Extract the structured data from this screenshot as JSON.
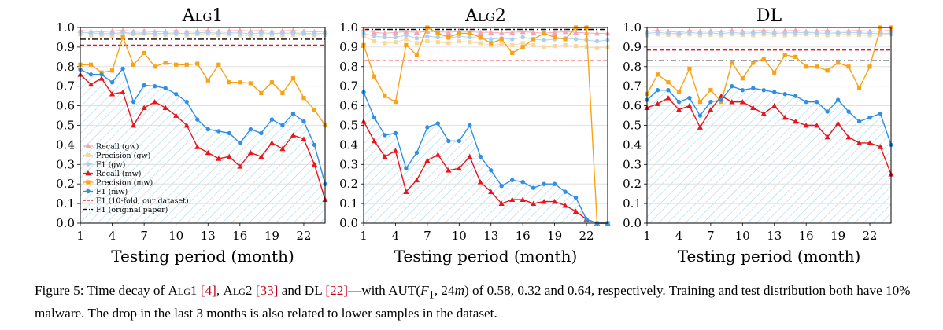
{
  "chart_data": [
    {
      "type": "line",
      "title": "Alg1",
      "xlabel": "Testing period (month)",
      "ylabel": "",
      "xlim": [
        1,
        24
      ],
      "ylim": [
        0,
        1
      ],
      "xticks": [
        "1",
        "4",
        "7",
        "10",
        "13",
        "16",
        "19",
        "22"
      ],
      "yticks": [
        "0.0",
        "0.1",
        "0.2",
        "0.3",
        "0.4",
        "0.5",
        "0.6",
        "0.7",
        "0.8",
        "0.9",
        "1.0"
      ],
      "grid": true,
      "legend_position": "lower-left",
      "series": [
        {
          "name": "Recall (gw)",
          "color": "#f4a6b0",
          "marker": "triangle",
          "faded": true,
          "values": [
            0.985,
            0.98,
            0.978,
            0.982,
            0.985,
            0.98,
            0.982,
            0.978,
            0.98,
            0.984,
            0.98,
            0.982,
            0.985,
            0.98,
            0.983,
            0.985,
            0.982,
            0.985,
            0.98,
            0.983,
            0.985,
            0.98,
            0.978,
            0.98
          ]
        },
        {
          "name": "Precision (gw)",
          "color": "#f9d79a",
          "marker": "square",
          "faded": true,
          "values": [
            0.965,
            0.96,
            0.962,
            0.958,
            0.97,
            0.965,
            0.968,
            0.96,
            0.962,
            0.965,
            0.96,
            0.966,
            0.968,
            0.962,
            0.965,
            0.96,
            0.958,
            0.962,
            0.964,
            0.96,
            0.963,
            0.965,
            0.96,
            0.962
          ]
        },
        {
          "name": "F1 (gw)",
          "color": "#a9cff2",
          "marker": "circle",
          "faded": true,
          "values": [
            0.975,
            0.972,
            0.97,
            0.968,
            0.975,
            0.97,
            0.973,
            0.968,
            0.97,
            0.972,
            0.968,
            0.973,
            0.975,
            0.97,
            0.973,
            0.972,
            0.968,
            0.972,
            0.97,
            0.97,
            0.972,
            0.97,
            0.968,
            0.97
          ]
        },
        {
          "name": "Recall (mw)",
          "color": "#e8151b",
          "marker": "triangle",
          "values": [
            0.76,
            0.71,
            0.74,
            0.66,
            0.67,
            0.5,
            0.59,
            0.62,
            0.59,
            0.55,
            0.5,
            0.39,
            0.36,
            0.33,
            0.34,
            0.29,
            0.36,
            0.34,
            0.41,
            0.38,
            0.45,
            0.43,
            0.3,
            0.12
          ]
        },
        {
          "name": "Precision (mw)",
          "color": "#f8a315",
          "marker": "square",
          "values": [
            0.81,
            0.81,
            0.77,
            0.78,
            0.95,
            0.81,
            0.87,
            0.8,
            0.82,
            0.81,
            0.81,
            0.815,
            0.73,
            0.81,
            0.72,
            0.72,
            0.715,
            0.665,
            0.72,
            0.665,
            0.74,
            0.64,
            0.58,
            0.5
          ]
        },
        {
          "name": "F1 (mw)",
          "color": "#2f8fe4",
          "marker": "circle",
          "values": [
            0.785,
            0.76,
            0.76,
            0.72,
            0.79,
            0.62,
            0.705,
            0.7,
            0.69,
            0.66,
            0.62,
            0.53,
            0.48,
            0.47,
            0.46,
            0.41,
            0.48,
            0.46,
            0.53,
            0.5,
            0.56,
            0.52,
            0.4,
            0.2
          ]
        }
      ],
      "reference_lines": [
        {
          "name": "F1 (10-fold, our dataset)",
          "color": "#e8151b",
          "style": "dashed",
          "value": 0.91
        },
        {
          "name": "F1 (original paper)",
          "color": "#000000",
          "style": "dash-dot",
          "value": 0.94
        }
      ],
      "legend": [
        "Recall (gw)",
        "Precision (gw)",
        "F1 (gw)",
        "Recall (mw)",
        "Precision (mw)",
        "F1 (mw)",
        "F1 (10-fold, our dataset)",
        "F1 (original paper)"
      ]
    },
    {
      "type": "line",
      "title": "Alg2",
      "xlabel": "Testing period (month)",
      "ylabel": "",
      "xlim": [
        1,
        24
      ],
      "ylim": [
        0,
        1
      ],
      "xticks": [
        "1",
        "4",
        "7",
        "10",
        "13",
        "16",
        "19",
        "22"
      ],
      "yticks": [
        "0.0",
        "0.1",
        "0.2",
        "0.3",
        "0.4",
        "0.5",
        "0.6",
        "0.7",
        "0.8",
        "0.9",
        "1.0"
      ],
      "grid": true,
      "series": [
        {
          "name": "Recall (gw)",
          "color": "#f4a6b0",
          "marker": "triangle",
          "faded": true,
          "values": [
            0.99,
            0.975,
            0.97,
            0.975,
            0.978,
            0.975,
            0.98,
            0.978,
            0.975,
            0.98,
            0.978,
            0.975,
            0.975,
            0.972,
            0.975,
            0.978,
            0.975,
            0.97,
            0.975,
            0.978,
            0.975,
            0.972,
            0.97,
            0.97
          ]
        },
        {
          "name": "Precision (gw)",
          "color": "#f9d79a",
          "marker": "square",
          "faded": true,
          "values": [
            0.955,
            0.93,
            0.92,
            0.925,
            0.94,
            0.92,
            0.93,
            0.925,
            0.92,
            0.93,
            0.925,
            0.92,
            0.91,
            0.915,
            0.91,
            0.92,
            0.91,
            0.9,
            0.905,
            0.91,
            0.905,
            0.9,
            0.895,
            0.9
          ]
        },
        {
          "name": "F1 (gw)",
          "color": "#a9cff2",
          "marker": "circle",
          "faded": true,
          "values": [
            0.97,
            0.955,
            0.95,
            0.95,
            0.96,
            0.945,
            0.955,
            0.95,
            0.945,
            0.955,
            0.95,
            0.945,
            0.94,
            0.945,
            0.94,
            0.95,
            0.94,
            0.935,
            0.94,
            0.945,
            0.94,
            0.935,
            0.93,
            0.935
          ]
        },
        {
          "name": "Recall (mw)",
          "color": "#e8151b",
          "marker": "triangle",
          "values": [
            0.52,
            0.42,
            0.34,
            0.37,
            0.16,
            0.22,
            0.32,
            0.35,
            0.27,
            0.28,
            0.34,
            0.21,
            0.16,
            0.1,
            0.12,
            0.12,
            0.1,
            0.11,
            0.11,
            0.09,
            0.06,
            0.02,
            0.0,
            0.0
          ]
        },
        {
          "name": "Precision (mw)",
          "color": "#f8a315",
          "marker": "square",
          "values": [
            0.91,
            0.75,
            0.65,
            0.62,
            0.91,
            0.86,
            1.0,
            0.97,
            0.95,
            0.97,
            0.97,
            0.95,
            0.92,
            0.94,
            0.87,
            0.9,
            0.94,
            0.97,
            0.95,
            0.94,
            1.0,
            1.0,
            0.0,
            0.0
          ]
        },
        {
          "name": "F1 (mw)",
          "color": "#2f8fe4",
          "marker": "circle",
          "values": [
            0.67,
            0.54,
            0.45,
            0.46,
            0.28,
            0.36,
            0.49,
            0.51,
            0.42,
            0.42,
            0.5,
            0.34,
            0.27,
            0.19,
            0.22,
            0.21,
            0.18,
            0.2,
            0.2,
            0.16,
            0.13,
            0.02,
            0.0,
            0.0
          ]
        }
      ],
      "reference_lines": [
        {
          "name": "F1 (10-fold, our dataset)",
          "color": "#e8151b",
          "style": "dashed",
          "value": 0.83
        },
        {
          "name": "F1 (original paper)",
          "color": "#000000",
          "style": "dash-dot",
          "value": 0.99
        }
      ]
    },
    {
      "type": "line",
      "title": "DL",
      "xlabel": "Testing period (month)",
      "ylabel": "",
      "xlim": [
        1,
        24
      ],
      "ylim": [
        0,
        1
      ],
      "xticks": [
        "1",
        "4",
        "7",
        "10",
        "13",
        "16",
        "19",
        "22"
      ],
      "yticks": [
        "0.0",
        "0.1",
        "0.2",
        "0.3",
        "0.4",
        "0.5",
        "0.6",
        "0.7",
        "0.8",
        "0.9",
        "1.0"
      ],
      "grid": true,
      "series": [
        {
          "name": "Recall (gw)",
          "color": "#f4a6b0",
          "marker": "triangle",
          "faded": true,
          "values": [
            0.98,
            0.985,
            0.98,
            0.975,
            0.985,
            0.98,
            0.982,
            0.978,
            0.985,
            0.98,
            0.982,
            0.985,
            0.98,
            0.983,
            0.985,
            0.98,
            0.982,
            0.985,
            0.98,
            0.983,
            0.985,
            0.98,
            0.982,
            0.985
          ]
        },
        {
          "name": "Precision (gw)",
          "color": "#f9d79a",
          "marker": "square",
          "faded": true,
          "values": [
            0.96,
            0.965,
            0.962,
            0.96,
            0.965,
            0.96,
            0.962,
            0.96,
            0.965,
            0.962,
            0.96,
            0.965,
            0.962,
            0.96,
            0.963,
            0.965,
            0.962,
            0.96,
            0.963,
            0.965,
            0.962,
            0.96,
            0.962,
            0.965
          ]
        },
        {
          "name": "F1 (gw)",
          "color": "#a9cff2",
          "marker": "circle",
          "faded": true,
          "values": [
            0.97,
            0.975,
            0.97,
            0.968,
            0.975,
            0.97,
            0.972,
            0.968,
            0.975,
            0.97,
            0.972,
            0.975,
            0.97,
            0.972,
            0.973,
            0.975,
            0.972,
            0.97,
            0.973,
            0.975,
            0.972,
            0.97,
            0.968,
            0.97
          ]
        },
        {
          "name": "Recall (mw)",
          "color": "#e8151b",
          "marker": "triangle",
          "values": [
            0.59,
            0.61,
            0.64,
            0.58,
            0.6,
            0.49,
            0.58,
            0.65,
            0.62,
            0.62,
            0.59,
            0.56,
            0.6,
            0.54,
            0.52,
            0.5,
            0.5,
            0.44,
            0.51,
            0.44,
            0.41,
            0.41,
            0.39,
            0.25
          ]
        },
        {
          "name": "Precision (mw)",
          "color": "#f8a315",
          "marker": "square",
          "values": [
            0.66,
            0.76,
            0.72,
            0.67,
            0.79,
            0.62,
            0.68,
            0.62,
            0.82,
            0.74,
            0.82,
            0.84,
            0.77,
            0.86,
            0.85,
            0.8,
            0.8,
            0.78,
            0.82,
            0.8,
            0.69,
            0.8,
            1.0,
            1.0
          ]
        },
        {
          "name": "F1 (mw)",
          "color": "#2f8fe4",
          "marker": "circle",
          "values": [
            0.63,
            0.68,
            0.68,
            0.62,
            0.64,
            0.55,
            0.62,
            0.63,
            0.7,
            0.68,
            0.69,
            0.68,
            0.67,
            0.66,
            0.65,
            0.62,
            0.62,
            0.57,
            0.63,
            0.57,
            0.52,
            0.54,
            0.56,
            0.4
          ]
        }
      ],
      "reference_lines": [
        {
          "name": "F1 (10-fold, our dataset)",
          "color": "#e8151b",
          "style": "dashed",
          "value": 0.885
        },
        {
          "name": "F1 (original paper)",
          "color": "#000000",
          "style": "dash-dot",
          "value": 0.83
        }
      ]
    }
  ],
  "caption": {
    "label": "Figure 5: Time decay of ",
    "alg1": "Alg1",
    "cite1": "[4]",
    "sep1": ", ",
    "alg2": "Alg2",
    "cite2": "[33]",
    "sep2": " and DL ",
    "cite3": "[22]",
    "mid": "—with AUT(",
    "f1": "F",
    "f1sub": "1",
    "aut_arg": ", 24",
    "m": "m",
    "rest": ") of 0.58, 0.32 and 0.64, respectively. Training and test distribution both have 10% malware. The drop in the last 3 months is also related to lower samples in the dataset."
  }
}
